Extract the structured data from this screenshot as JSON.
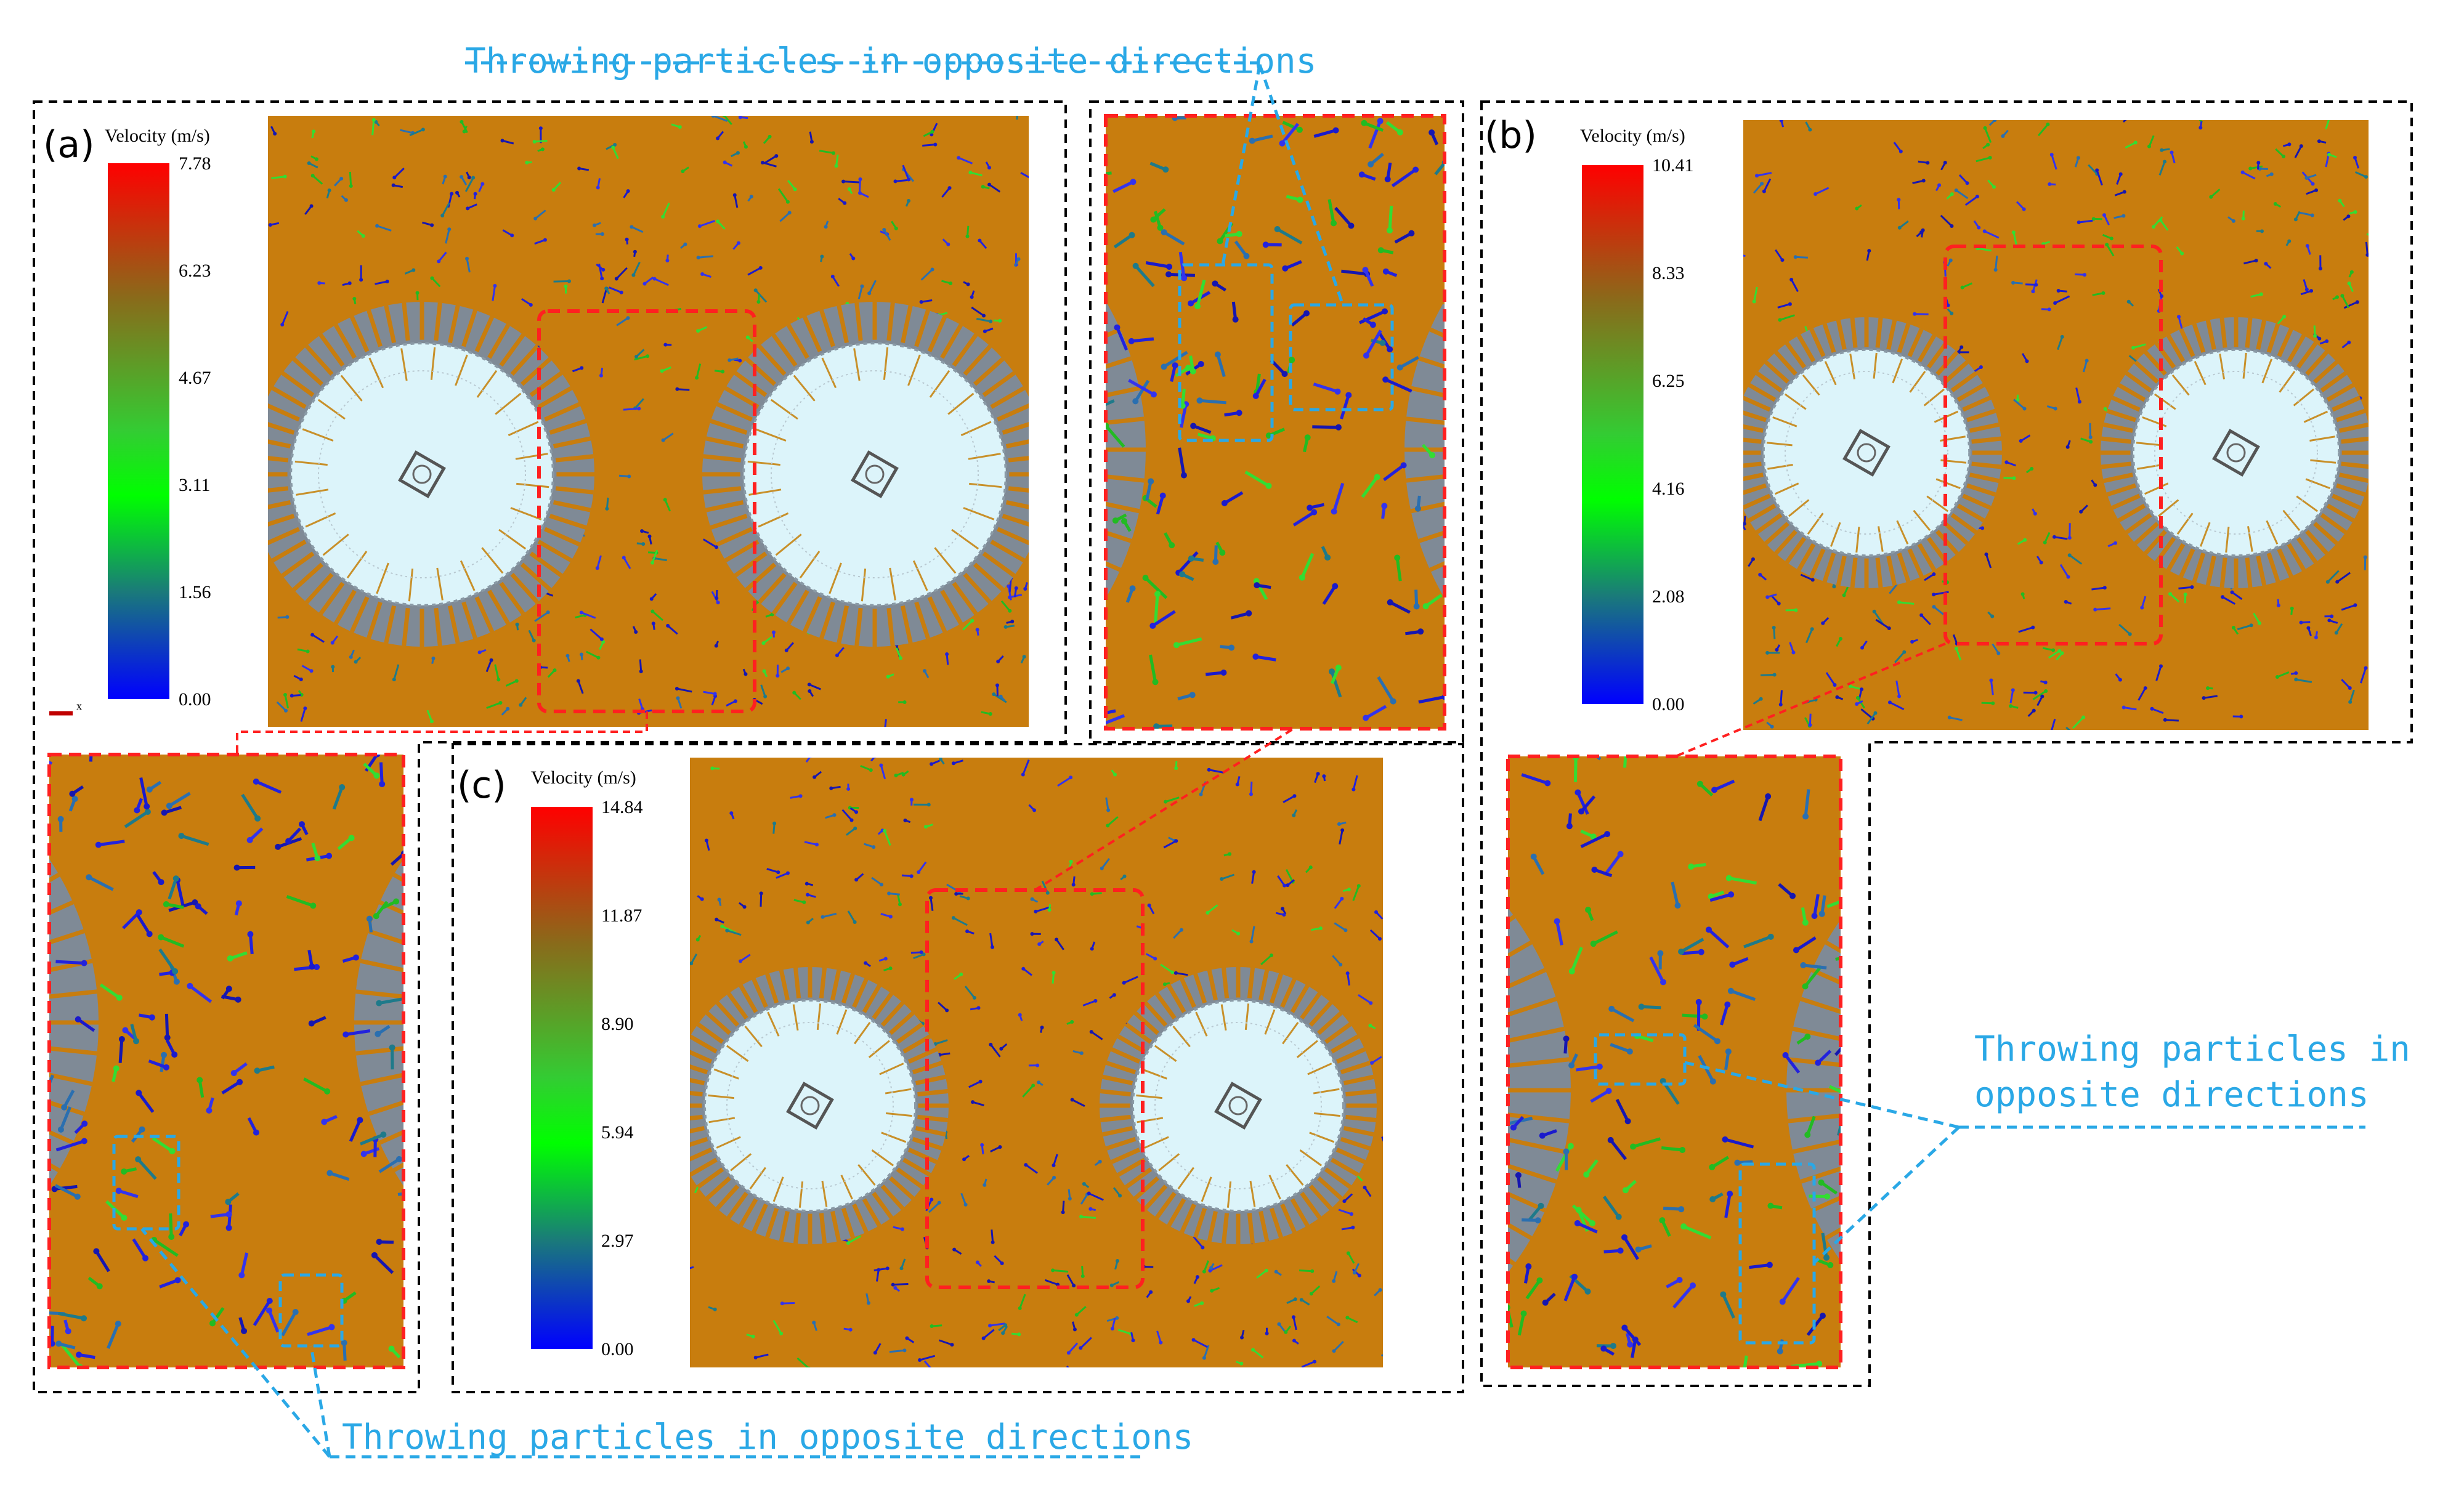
{
  "callout_text": "Throwing particles in opposite directions",
  "callout_line1": "Throwing particles in",
  "callout_line2": "opposite directions",
  "colorbar_title": "Velocity (m/s)",
  "axis_marker": "x",
  "panels": {
    "a": {
      "letter": "(a)",
      "ticks": [
        "7.78",
        "6.23",
        "4.67",
        "3.11",
        "1.56",
        "0.00"
      ]
    },
    "b": {
      "letter": "(b)",
      "ticks": [
        "10.41",
        "8.33",
        "6.25",
        "4.16",
        "2.08",
        "0.00"
      ]
    },
    "c": {
      "letter": "(c)",
      "ticks": [
        "14.84",
        "11.87",
        "8.90",
        "5.94",
        "2.97",
        "0.00"
      ]
    }
  },
  "colors": {
    "bed": "#c87d0e",
    "drum": "#dcf4fa",
    "ring": "#7f8a96",
    "highlight": "#ff2020",
    "callout": "#2aa8e6",
    "frame": "#000000"
  }
}
